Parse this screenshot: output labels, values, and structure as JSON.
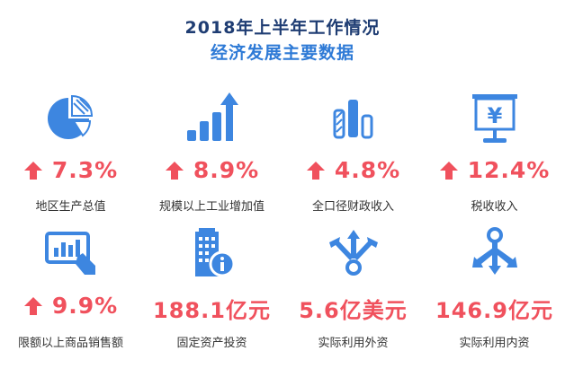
{
  "header": {
    "title": "2018年上半年工作情况",
    "subtitle": "经济发展主要数据"
  },
  "colors": {
    "title": "#1f3d73",
    "subtitle": "#2e7ad6",
    "icon": "#3d86e0",
    "value": "#f0515d",
    "label": "#333333"
  },
  "indicators": [
    {
      "icon": "pie-chart-icon",
      "trend": "up",
      "value": "7.3%",
      "label": "地区生产总值"
    },
    {
      "icon": "growth-bars-arrow-icon",
      "trend": "up",
      "value": "8.9%",
      "label": "规模以上工业增加值"
    },
    {
      "icon": "bar-chart-icon",
      "trend": "up",
      "value": "4.8%",
      "label": "全口径财政收入"
    },
    {
      "icon": "yen-presentation-icon",
      "trend": "up",
      "value": "12.4%",
      "label": "税收收入"
    },
    {
      "icon": "tablet-chart-hand-icon",
      "trend": "up",
      "value": "9.9%",
      "label": "限额以上商品销售额"
    },
    {
      "icon": "building-info-icon",
      "trend": "none",
      "value": "188.1亿元",
      "label": "固定资产投资"
    },
    {
      "icon": "branching-arrows-icon",
      "trend": "none",
      "value": "5.6亿美元",
      "label": "实际利用外资"
    },
    {
      "icon": "distribution-arrows-icon",
      "trend": "none",
      "value": "146.9亿元",
      "label": "实际利用内资"
    }
  ]
}
